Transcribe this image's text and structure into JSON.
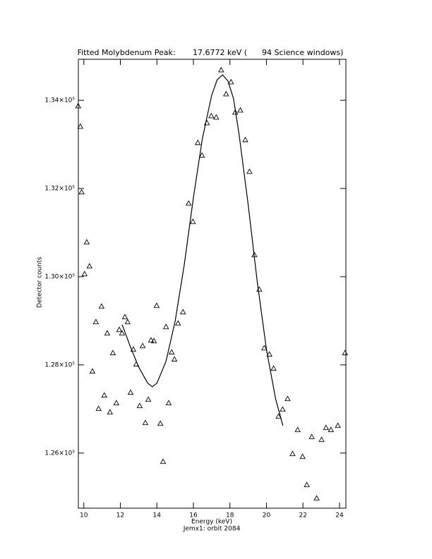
{
  "chart_data": {
    "type": "scatter",
    "title": "Fitted Molybdenum Peak:       17.6772 keV (      94 Science windows)",
    "x_label": "Energy (keV)",
    "subtitle": "Jemx1: orbit 2084",
    "y_label": "Detector counts",
    "xlim": [
      9.7,
      24.35
    ],
    "ylim": [
      124750,
      134930
    ],
    "xticks": [
      10,
      12,
      14,
      16,
      18,
      20,
      22,
      24
    ],
    "yticks": [
      {
        "value": 126000,
        "label": "1.26×10⁵"
      },
      {
        "value": 128000,
        "label": "1.28×10⁵"
      },
      {
        "value": 130000,
        "label": "1.30×10⁵"
      },
      {
        "value": 132000,
        "label": "1.32×10⁵"
      },
      {
        "value": 134000,
        "label": "1.34×10⁵"
      }
    ],
    "series": [
      {
        "type": "scatter",
        "color": "#000000",
        "x": [
          9.69,
          9.81,
          9.88,
          10.04,
          10.16,
          10.31,
          10.47,
          10.66,
          10.81,
          10.97,
          11.12,
          11.28,
          11.43,
          11.59,
          11.78,
          11.94,
          12.09,
          12.25,
          12.4,
          12.56,
          12.71,
          12.87,
          13.06,
          13.22,
          13.37,
          13.53,
          13.68,
          13.84,
          13.99,
          14.19,
          14.34,
          14.5,
          14.65,
          14.81,
          14.96,
          15.16,
          15.43,
          15.74,
          15.97,
          16.24,
          16.47,
          16.74,
          16.98,
          17.25,
          17.52,
          17.79,
          18.06,
          18.29,
          18.57,
          18.84,
          19.07,
          19.34,
          19.61,
          19.88,
          20.16,
          20.39,
          20.66,
          20.89,
          21.16,
          21.43,
          21.71,
          21.98,
          22.21,
          22.48,
          22.75,
          23.02,
          23.26,
          23.53,
          23.91,
          24.3
        ],
        "values": [
          133872,
          133408,
          131920,
          130064,
          130784,
          130240,
          127856,
          128976,
          127008,
          129328,
          127312,
          128720,
          126928,
          128272,
          127136,
          128800,
          128720,
          129088,
          128976,
          127376,
          128352,
          128016,
          127072,
          128432,
          126688,
          127216,
          128560,
          128544,
          129344,
          126672,
          125808,
          128864,
          127136,
          128288,
          128128,
          128944,
          129200,
          131664,
          131248,
          133040,
          132752,
          133488,
          133648,
          133616,
          134688,
          134144,
          134416,
          133728,
          133776,
          133104,
          132384,
          130496,
          129712,
          128384,
          128240,
          127920,
          126832,
          126992,
          127232,
          125984,
          126528,
          125920,
          125280,
          126368,
          124976,
          126304,
          126576,
          126528,
          126624,
          128272
        ]
      },
      {
        "type": "line",
        "color": "#000000",
        "x": [
          12.1,
          12.5,
          13,
          13.5,
          13.75,
          14,
          14.5,
          15,
          15.5,
          16,
          16.5,
          17,
          17.3,
          17.6,
          17.9,
          18.2,
          18.5,
          19,
          19.5,
          20,
          20.5,
          20.9
        ],
        "values": [
          128912,
          128464,
          127952,
          127584,
          127504,
          127584,
          128080,
          128992,
          130272,
          131792,
          133152,
          134112,
          134464,
          134576,
          134432,
          134032,
          133232,
          131632,
          129872,
          128352,
          127232,
          126624
        ]
      }
    ]
  }
}
